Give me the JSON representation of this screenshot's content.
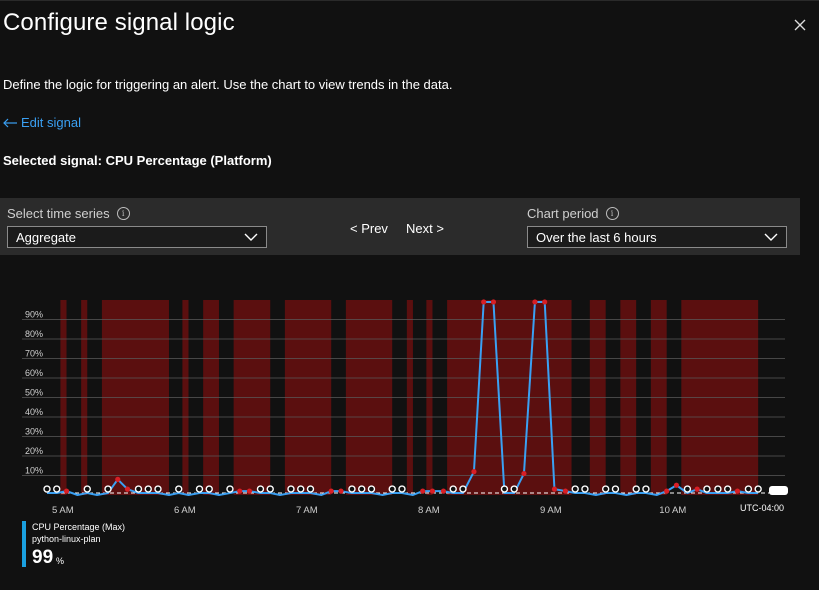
{
  "header": {
    "title": "Configure signal logic",
    "close_icon": "close-icon"
  },
  "description": "Define the logic for triggering an alert. Use the chart to view trends in the data.",
  "edit_signal": {
    "label": "Edit signal",
    "icon": "arrow-left-icon",
    "color": "#3aa0f3"
  },
  "selected_signal": "Selected signal: CPU Percentage (Platform)",
  "controls": {
    "time_series_label": "Select time series",
    "time_series_value": "Aggregate",
    "prev_label": "< Prev",
    "next_label": "Next >",
    "chart_period_label": "Chart period",
    "chart_period_value": "Over the last 6 hours"
  },
  "legend": {
    "series_name": "CPU Percentage (Max)",
    "resource": "python-linux-plan",
    "value": "99",
    "unit": "%",
    "color": "#1aa0e0"
  },
  "chart_data": {
    "type": "line",
    "title": "",
    "ylabel": "",
    "xlabel": "",
    "y_ticks": [
      "10%",
      "20%",
      "30%",
      "40%",
      "50%",
      "60%",
      "70%",
      "80%",
      "90%"
    ],
    "ylim": [
      0,
      100
    ],
    "x_ticks": [
      {
        "label": "5 AM",
        "t": 0.5
      },
      {
        "label": "6 AM",
        "t": 1.5
      },
      {
        "label": "7 AM",
        "t": 2.5
      },
      {
        "label": "8 AM",
        "t": 3.5
      },
      {
        "label": "9 AM",
        "t": 4.5
      },
      {
        "label": "10 AM",
        "t": 5.5
      }
    ],
    "xlim": [
      0.37,
      6.42
    ],
    "timezone": "UTC-04:00",
    "threshold": 1,
    "line_color": "#3aa0f3",
    "alert_color": "#5b0f0f",
    "series": [
      {
        "name": "CPU Percentage (Max)",
        "points": [
          {
            "t": 0.37,
            "v": 1
          },
          {
            "t": 0.45,
            "v": 1
          },
          {
            "t": 0.53,
            "v": 2
          },
          {
            "t": 0.62,
            "v": 0
          },
          {
            "t": 0.7,
            "v": 1
          },
          {
            "t": 0.78,
            "v": 0
          },
          {
            "t": 0.87,
            "v": 1
          },
          {
            "t": 0.95,
            "v": 8
          },
          {
            "t": 1.03,
            "v": 3
          },
          {
            "t": 1.12,
            "v": 1
          },
          {
            "t": 1.2,
            "v": 1
          },
          {
            "t": 1.28,
            "v": 1
          },
          {
            "t": 1.37,
            "v": 0
          },
          {
            "t": 1.45,
            "v": 1
          },
          {
            "t": 1.53,
            "v": 0
          },
          {
            "t": 1.62,
            "v": 1
          },
          {
            "t": 1.7,
            "v": 1
          },
          {
            "t": 1.78,
            "v": 0
          },
          {
            "t": 1.87,
            "v": 1
          },
          {
            "t": 1.95,
            "v": 2
          },
          {
            "t": 2.03,
            "v": 2
          },
          {
            "t": 2.12,
            "v": 1
          },
          {
            "t": 2.2,
            "v": 1
          },
          {
            "t": 2.28,
            "v": 0
          },
          {
            "t": 2.37,
            "v": 1
          },
          {
            "t": 2.45,
            "v": 1
          },
          {
            "t": 2.53,
            "v": 1
          },
          {
            "t": 2.62,
            "v": 0
          },
          {
            "t": 2.7,
            "v": 2
          },
          {
            "t": 2.78,
            "v": 2
          },
          {
            "t": 2.87,
            "v": 1
          },
          {
            "t": 2.95,
            "v": 1
          },
          {
            "t": 3.03,
            "v": 1
          },
          {
            "t": 3.12,
            "v": 0
          },
          {
            "t": 3.2,
            "v": 1
          },
          {
            "t": 3.28,
            "v": 1
          },
          {
            "t": 3.37,
            "v": 0
          },
          {
            "t": 3.45,
            "v": 2
          },
          {
            "t": 3.53,
            "v": 2
          },
          {
            "t": 3.62,
            "v": 2
          },
          {
            "t": 3.7,
            "v": 1
          },
          {
            "t": 3.78,
            "v": 1
          },
          {
            "t": 3.87,
            "v": 12
          },
          {
            "t": 3.95,
            "v": 99
          },
          {
            "t": 4.03,
            "v": 99
          },
          {
            "t": 4.12,
            "v": 1
          },
          {
            "t": 4.2,
            "v": 1
          },
          {
            "t": 4.28,
            "v": 11
          },
          {
            "t": 4.37,
            "v": 99
          },
          {
            "t": 4.45,
            "v": 99
          },
          {
            "t": 4.53,
            "v": 3
          },
          {
            "t": 4.62,
            "v": 2
          },
          {
            "t": 4.7,
            "v": 1
          },
          {
            "t": 4.78,
            "v": 1
          },
          {
            "t": 4.87,
            "v": 0
          },
          {
            "t": 4.95,
            "v": 1
          },
          {
            "t": 5.03,
            "v": 1
          },
          {
            "t": 5.12,
            "v": 0
          },
          {
            "t": 5.2,
            "v": 1
          },
          {
            "t": 5.28,
            "v": 1
          },
          {
            "t": 5.37,
            "v": 0
          },
          {
            "t": 5.45,
            "v": 2
          },
          {
            "t": 5.53,
            "v": 5
          },
          {
            "t": 5.62,
            "v": 1
          },
          {
            "t": 5.7,
            "v": 3
          },
          {
            "t": 5.78,
            "v": 1
          },
          {
            "t": 5.87,
            "v": 1
          },
          {
            "t": 5.95,
            "v": 1
          },
          {
            "t": 6.03,
            "v": 2
          },
          {
            "t": 6.12,
            "v": 1
          },
          {
            "t": 6.2,
            "v": 1
          }
        ]
      }
    ],
    "alert_periods": [
      {
        "start": 0.48,
        "end": 0.53
      },
      {
        "start": 0.65,
        "end": 0.7
      },
      {
        "start": 0.82,
        "end": 1.37
      },
      {
        "start": 1.48,
        "end": 1.53
      },
      {
        "start": 1.65,
        "end": 1.78
      },
      {
        "start": 1.9,
        "end": 2.2
      },
      {
        "start": 2.32,
        "end": 2.7
      },
      {
        "start": 2.82,
        "end": 3.2
      },
      {
        "start": 3.32,
        "end": 3.37
      },
      {
        "start": 3.48,
        "end": 3.53
      },
      {
        "start": 3.65,
        "end": 4.67
      },
      {
        "start": 4.82,
        "end": 4.95
      },
      {
        "start": 5.07,
        "end": 5.2
      },
      {
        "start": 5.32,
        "end": 5.45
      },
      {
        "start": 5.57,
        "end": 6.2
      }
    ]
  }
}
